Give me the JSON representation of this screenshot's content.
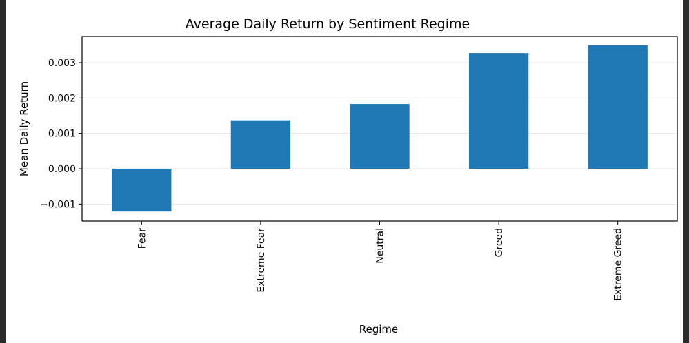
{
  "chart_data": {
    "type": "bar",
    "title": "Average Daily Return by Sentiment Regime",
    "xlabel": "Regime",
    "ylabel": "Mean Daily Return",
    "categories": [
      "Fear",
      "Extreme Fear",
      "Neutral",
      "Greed",
      "Extreme Greed"
    ],
    "values": [
      -0.00121,
      0.00137,
      0.00183,
      0.00327,
      0.00349
    ],
    "ylim": [
      -0.00148,
      0.00374
    ],
    "yticks": [
      -0.001,
      0.0,
      0.001,
      0.002,
      0.003
    ],
    "ytick_labels": [
      "−0.001",
      "0.000",
      "0.001",
      "0.002",
      "0.003"
    ],
    "grid": "horizontal",
    "bar_color": "#1f77b4"
  }
}
